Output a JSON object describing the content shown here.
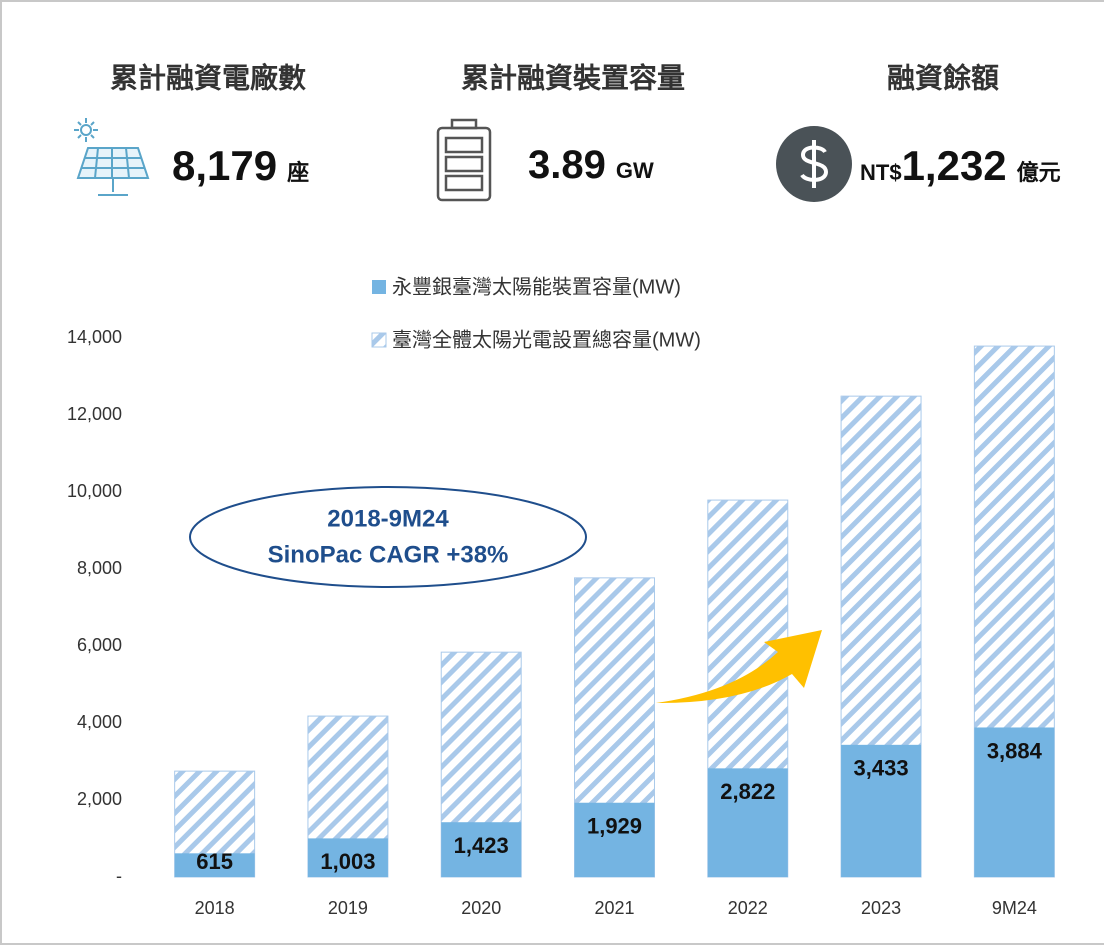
{
  "kpis": [
    {
      "title": "累計融資電廠數",
      "value": "8,179",
      "unit": "座"
    },
    {
      "title": "累計融資裝置容量",
      "value": "3.89",
      "unit": "GW"
    },
    {
      "title": "融資餘額",
      "prefix": "NT$",
      "value": "1,232",
      "unit": "億元"
    }
  ],
  "chart_data": {
    "type": "bar",
    "overlay": true,
    "categories": [
      "2018",
      "2019",
      "2020",
      "2021",
      "2022",
      "2023",
      "9M24"
    ],
    "series": [
      {
        "name": "永豐銀臺灣太陽能裝置容量(MW)",
        "color": "#74b4e2",
        "values": [
          615,
          1003,
          1423,
          1929,
          2822,
          3433,
          3884
        ],
        "value_labels": [
          "615",
          "1,003",
          "1,423",
          "1,929",
          "2,822",
          "3,433",
          "3,884"
        ]
      },
      {
        "name": "臺灣全體太陽光電設置總容量(MW)",
        "color": "#a9c9ea",
        "hatch": true,
        "values": [
          2750,
          4180,
          5840,
          7770,
          9790,
          12490,
          13790
        ]
      }
    ],
    "ylim": [
      0,
      14000
    ],
    "yticks": [
      {
        "value": 0,
        "label": "-"
      },
      {
        "value": 2000,
        "label": "2,000"
      },
      {
        "value": 4000,
        "label": "4,000"
      },
      {
        "value": 6000,
        "label": "6,000"
      },
      {
        "value": 8000,
        "label": "8,000"
      },
      {
        "value": 10000,
        "label": "10,000"
      },
      {
        "value": 12000,
        "label": "12,000"
      },
      {
        "value": 14000,
        "label": "14,000"
      }
    ],
    "annotation": [
      "2018-9M24",
      "SinoPac CAGR +38%"
    ]
  }
}
